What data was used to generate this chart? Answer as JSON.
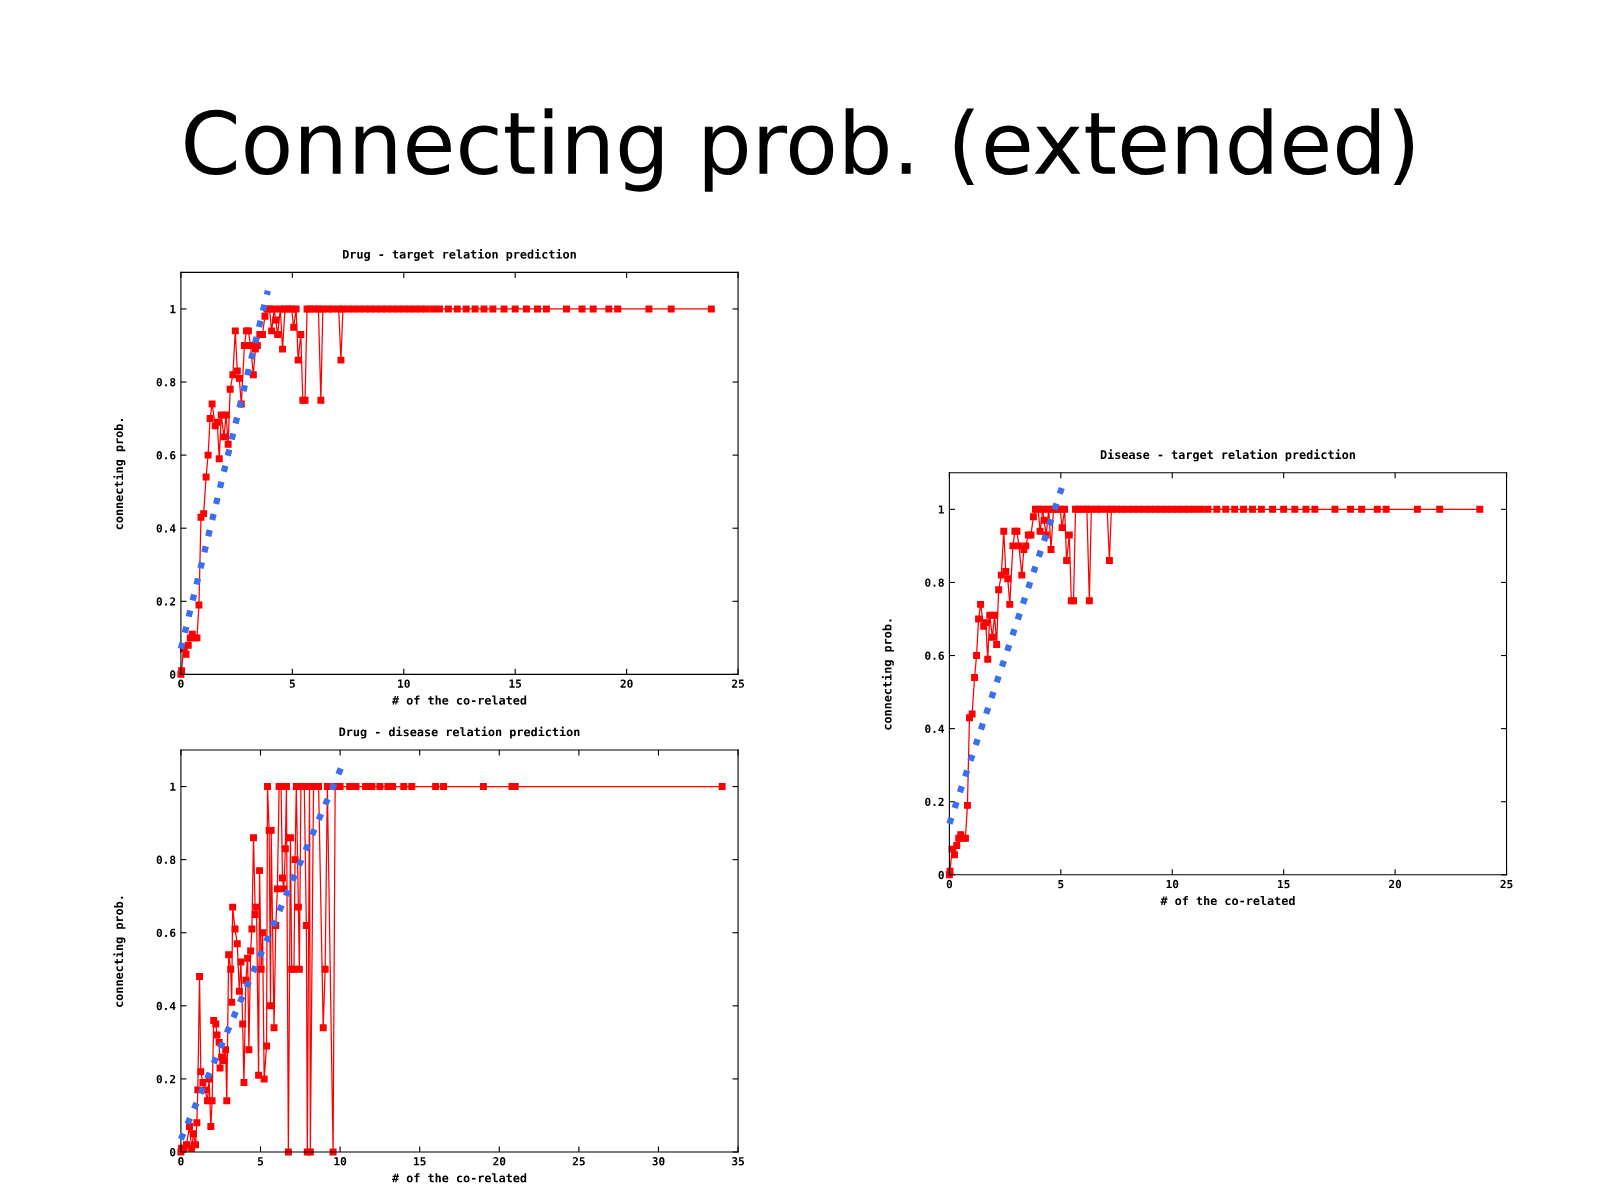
{
  "chart_data": [
    {
      "type": "other",
      "title": "Connecting prob. (extended)"
    },
    {
      "type": "line",
      "title": "Drug - target relation prediction",
      "xlabel": "# of the co-related",
      "ylabel": "connecting prob.",
      "xlim": [
        0,
        25
      ],
      "xticks": [
        0,
        5,
        10,
        15,
        20,
        25
      ],
      "ylim": [
        0,
        1.1
      ],
      "yticks": [
        0,
        0.2,
        0.4,
        0.6,
        0.8,
        1
      ],
      "series": [
        {
          "color": "#ff0000",
          "marker": "square",
          "line_style": "solid",
          "x": [
            0,
            0.03,
            0.12,
            0.23,
            0.33,
            0.42,
            0.51,
            0.6,
            0.72,
            0.81,
            0.9,
            1.02,
            1.13,
            1.22,
            1.31,
            1.4,
            1.54,
            1.63,
            1.72,
            1.81,
            1.93,
            2.03,
            2.12,
            2.21,
            2.33,
            2.44,
            2.53,
            2.62,
            2.71,
            2.85,
            2.94,
            3.03,
            3.12,
            3.25,
            3.34,
            3.43,
            3.54,
            3.66,
            3.77,
            3.86,
            3.98,
            4.07,
            4.19,
            4.25,
            4.34,
            4.46,
            4.56,
            4.67,
            4.82,
            4.97,
            5.06,
            5.17,
            5.26,
            5.38,
            5.47,
            5.57,
            5.66,
            5.8,
            6.0,
            6.17,
            6.28,
            6.37,
            6.6,
            6.8,
            7.08,
            7.18,
            7.27,
            7.5,
            7.75,
            8,
            8.25,
            8.5,
            8.75,
            9,
            9.25,
            9.5,
            9.75,
            10,
            10.25,
            10.5,
            10.75,
            11,
            11.3,
            11.6,
            12,
            12.4,
            12.8,
            13.2,
            13.6,
            14,
            14.5,
            15,
            15.5,
            16,
            16.4,
            17.3,
            18,
            18.5,
            19.2,
            19.6,
            21,
            22,
            23.8
          ],
          "values": [
            0,
            0.01,
            0.07,
            0.055,
            0.08,
            0.1,
            0.11,
            0.1,
            0.1,
            0.19,
            0.43,
            0.44,
            0.54,
            0.6,
            0.7,
            0.74,
            0.68,
            0.69,
            0.59,
            0.71,
            0.65,
            0.71,
            0.63,
            0.78,
            0.82,
            0.94,
            0.83,
            0.81,
            0.74,
            0.9,
            0.94,
            0.94,
            0.9,
            0.82,
            0.89,
            0.9,
            0.93,
            0.93,
            0.98,
            1,
            1,
            0.94,
            1,
            0.97,
            0.93,
            1,
            0.89,
            1,
            1,
            1,
            0.95,
            1,
            0.86,
            0.93,
            0.75,
            0.75,
            1,
            1,
            1,
            1,
            0.75,
            1,
            1,
            1,
            1,
            0.86,
            1,
            1,
            1,
            1,
            1,
            1,
            1,
            1,
            1,
            1,
            1,
            1,
            1,
            1,
            1,
            1,
            1,
            1,
            1,
            1,
            1,
            1,
            1,
            1,
            1,
            1,
            1,
            1,
            1,
            1,
            1,
            1,
            1,
            1,
            1,
            1,
            1
          ]
        },
        {
          "type": "line",
          "color": "#3a6ff0",
          "marker": "none",
          "line_style": "dotted",
          "x": [
            0,
            3.9
          ],
          "values": [
            0.07,
            1.05
          ]
        }
      ]
    },
    {
      "type": "line",
      "title": "Drug - disease relation prediction",
      "xlabel": "# of the co-related",
      "ylabel": "connecting prob.",
      "xlim": [
        0,
        35
      ],
      "xticks": [
        0,
        5,
        10,
        15,
        20,
        25,
        30,
        35
      ],
      "ylim": [
        0,
        1.1
      ],
      "yticks": [
        0,
        0.2,
        0.4,
        0.6,
        0.8,
        1
      ],
      "series": [
        {
          "color": "#ff0000",
          "marker": "square",
          "line_style": "solid",
          "x": [
            0,
            0.04,
            0.2,
            0.35,
            0.54,
            0.67,
            0.79,
            0.92,
            1.0,
            1.06,
            1.17,
            1.25,
            1.38,
            1.52,
            1.67,
            1.77,
            1.88,
            1.96,
            2.06,
            2.19,
            2.27,
            2.4,
            2.46,
            2.56,
            2.71,
            2.81,
            2.88,
            3.0,
            3.13,
            3.19,
            3.25,
            3.4,
            3.54,
            3.67,
            3.77,
            3.88,
            3.96,
            4.08,
            4.19,
            4.27,
            4.38,
            4.46,
            4.56,
            4.67,
            4.75,
            4.88,
            4.94,
            5.04,
            5.13,
            5.23,
            5.38,
            5.44,
            5.54,
            5.63,
            5.67,
            5.85,
            5.96,
            6.06,
            6.17,
            6.29,
            6.38,
            6.46,
            6.56,
            6.63,
            6.75,
            6.88,
            6.96,
            7.1,
            7.17,
            7.25,
            7.38,
            7.44,
            7.54,
            7.75,
            7.88,
            7.94,
            8.08,
            8.13,
            8.33,
            8.65,
            8.94,
            9.06,
            9.2,
            9.56,
            9.69,
            10,
            10.6,
            11,
            11.6,
            12,
            12.5,
            13,
            13.3,
            14,
            14.5,
            16,
            16.5,
            19,
            20.8,
            21,
            34
          ],
          "values": [
            0,
            0.01,
            0.01,
            0.02,
            0.07,
            0.01,
            0.05,
            0.02,
            0.08,
            0.17,
            0.48,
            0.22,
            0.19,
            0.17,
            0.14,
            0.2,
            0.07,
            0.14,
            0.36,
            0.35,
            0.32,
            0.3,
            0.23,
            0.26,
            0.25,
            0.28,
            0.14,
            0.54,
            0.5,
            0.41,
            0.67,
            0.61,
            0.57,
            0.44,
            0.52,
            0.35,
            0.19,
            0.47,
            0.53,
            0.28,
            0.55,
            0.61,
            0.86,
            0.65,
            0.67,
            0.21,
            0.77,
            0.5,
            0.6,
            0.2,
            0.29,
            1,
            0.88,
            0.4,
            0.88,
            0.34,
            0.62,
            0.72,
            1,
            1,
            0.75,
            0.72,
            0.83,
            1,
            0,
            0.86,
            0.5,
            0.5,
            0.8,
            1,
            0.67,
            0.5,
            1,
            1,
            0.62,
            0,
            1,
            0,
            1,
            1,
            0.34,
            0.5,
            1,
            0,
            1,
            1,
            1,
            1,
            1,
            1,
            1,
            1,
            1,
            1,
            1,
            1,
            1,
            1,
            1,
            1,
            1
          ]
        },
        {
          "type": "line",
          "color": "#3a6ff0",
          "marker": "none",
          "line_style": "dotted",
          "x": [
            0,
            10.15
          ],
          "values": [
            0.035,
            1.06
          ]
        }
      ]
    },
    {
      "type": "line",
      "title": "Disease - target relation prediction",
      "xlabel": "# of the co-related",
      "ylabel": "connecting prob.",
      "xlim": [
        0,
        25
      ],
      "xticks": [
        0,
        5,
        10,
        15,
        20,
        25
      ],
      "ylim": [
        0,
        1.1
      ],
      "yticks": [
        0,
        0.2,
        0.4,
        0.6,
        0.8,
        1
      ],
      "series": [
        {
          "color": "#ff0000",
          "marker": "square",
          "line_style": "solid",
          "x": [
            0,
            0.03,
            0.12,
            0.23,
            0.33,
            0.42,
            0.51,
            0.6,
            0.72,
            0.81,
            0.9,
            1.02,
            1.13,
            1.22,
            1.31,
            1.4,
            1.54,
            1.63,
            1.72,
            1.81,
            1.93,
            2.03,
            2.12,
            2.21,
            2.33,
            2.44,
            2.53,
            2.62,
            2.71,
            2.85,
            2.94,
            3.03,
            3.12,
            3.25,
            3.34,
            3.43,
            3.54,
            3.66,
            3.77,
            3.86,
            3.98,
            4.07,
            4.19,
            4.25,
            4.34,
            4.46,
            4.56,
            4.67,
            4.82,
            4.97,
            5.06,
            5.17,
            5.26,
            5.38,
            5.47,
            5.57,
            5.66,
            5.8,
            6.0,
            6.17,
            6.28,
            6.37,
            6.6,
            6.8,
            7.08,
            7.18,
            7.27,
            7.5,
            7.75,
            8,
            8.25,
            8.5,
            8.75,
            9,
            9.25,
            9.5,
            9.75,
            10,
            10.25,
            10.5,
            10.75,
            11,
            11.3,
            11.6,
            12,
            12.4,
            12.8,
            13.2,
            13.6,
            14,
            14.5,
            15,
            15.5,
            16,
            16.4,
            17.3,
            18,
            18.5,
            19.2,
            19.6,
            21,
            22,
            23.8
          ],
          "values": [
            0,
            0.01,
            0.07,
            0.055,
            0.08,
            0.1,
            0.11,
            0.1,
            0.1,
            0.19,
            0.43,
            0.44,
            0.54,
            0.6,
            0.7,
            0.74,
            0.68,
            0.69,
            0.59,
            0.71,
            0.65,
            0.71,
            0.63,
            0.78,
            0.82,
            0.94,
            0.83,
            0.81,
            0.74,
            0.9,
            0.94,
            0.94,
            0.9,
            0.82,
            0.89,
            0.9,
            0.93,
            0.93,
            0.98,
            1,
            1,
            0.94,
            1,
            0.97,
            0.93,
            1,
            0.89,
            1,
            1,
            1,
            0.95,
            1,
            0.86,
            0.93,
            0.75,
            0.75,
            1,
            1,
            1,
            1,
            0.75,
            1,
            1,
            1,
            1,
            0.86,
            1,
            1,
            1,
            1,
            1,
            1,
            1,
            1,
            1,
            1,
            1,
            1,
            1,
            1,
            1,
            1,
            1,
            1,
            1,
            1,
            1,
            1,
            1,
            1,
            1,
            1,
            1,
            1,
            1,
            1,
            1,
            1,
            1,
            1,
            1,
            1,
            1
          ]
        },
        {
          "type": "line",
          "color": "#3a6ff0",
          "marker": "none",
          "line_style": "dotted",
          "x": [
            0,
            5.05
          ],
          "values": [
            0.14,
            1.06
          ]
        }
      ]
    }
  ]
}
